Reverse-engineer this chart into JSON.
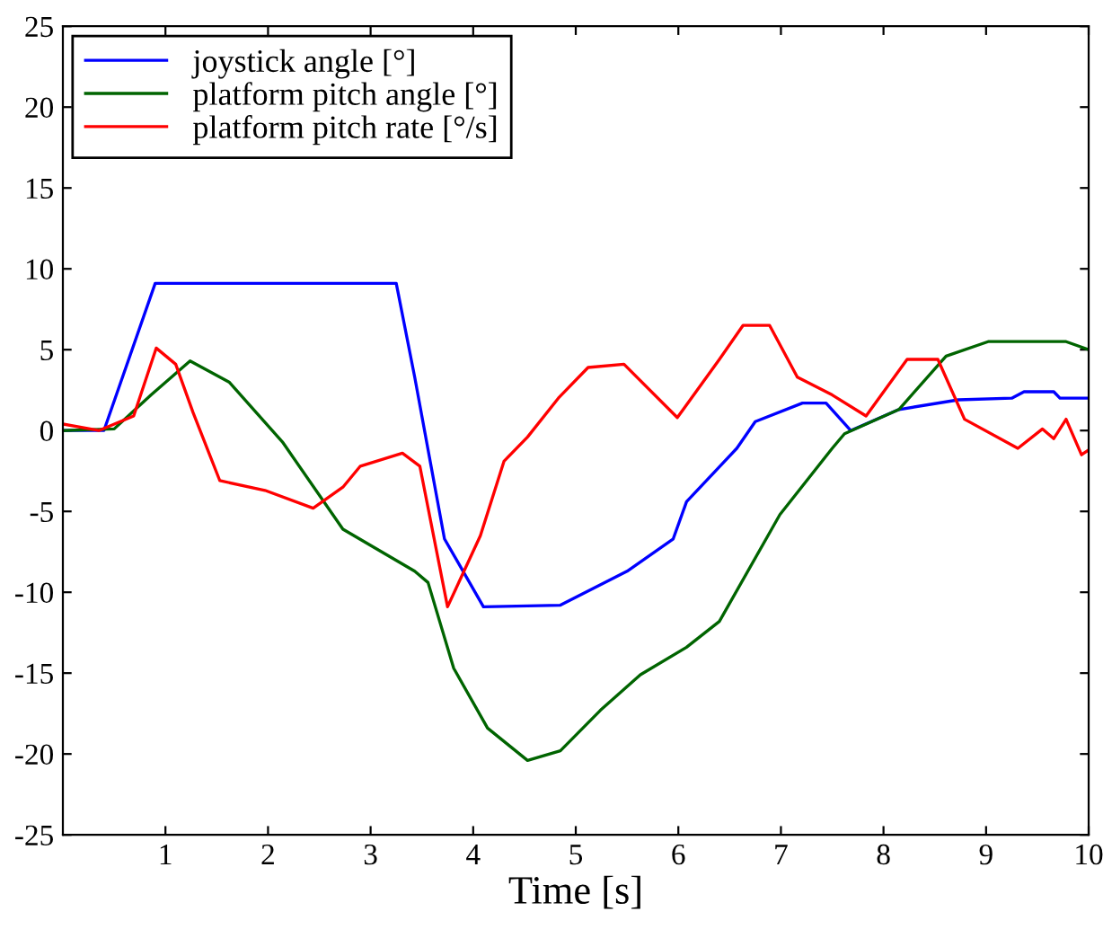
{
  "chart_data": {
    "type": "line",
    "xlabel": "Time [s]",
    "xlim": [
      0,
      10
    ],
    "xticks": [
      1,
      2,
      3,
      4,
      5,
      6,
      7,
      8,
      9,
      10
    ],
    "ylim": [
      -25,
      25
    ],
    "yticks": [
      -25,
      -20,
      -15,
      -10,
      -5,
      0,
      5,
      10,
      15,
      20,
      25
    ],
    "grid": false,
    "legend": "top left",
    "marker": "none",
    "line_style": "solid",
    "series": [
      {
        "name": "joystick angle [°]",
        "color": "#0000ff",
        "x": [
          0,
          0.4,
          0.9,
          3.25,
          3.43,
          3.72,
          4.1,
          4.85,
          5.5,
          5.95,
          6.08,
          6.57,
          6.75,
          7.21,
          7.44,
          7.68,
          8.15,
          8.73,
          9.25,
          9.37,
          9.66,
          9.72,
          10
        ],
        "values": [
          0,
          0,
          9.1,
          9.1,
          3.3,
          -6.7,
          -10.9,
          -10.8,
          -8.7,
          -6.7,
          -4.4,
          -1.1,
          0.55,
          1.7,
          1.7,
          0,
          1.3,
          1.9,
          2.0,
          2.4,
          2.4,
          2.0,
          2.0
        ]
      },
      {
        "name": "platform pitch angle [°]",
        "color": "#006400",
        "x": [
          0,
          0.5,
          0.86,
          1.24,
          1.62,
          2.14,
          2.73,
          3.43,
          3.56,
          3.81,
          4.14,
          4.53,
          4.85,
          5.24,
          5.63,
          6.08,
          6.4,
          6.99,
          7.5,
          7.62,
          8.15,
          8.61,
          9.02,
          9.78,
          10
        ],
        "values": [
          0,
          0.1,
          2.2,
          4.3,
          3.0,
          -0.7,
          -6.1,
          -8.7,
          -9.4,
          -14.7,
          -18.4,
          -20.4,
          -19.8,
          -17.3,
          -15.1,
          -13.4,
          -11.8,
          -5.2,
          -1.1,
          -0.2,
          1.3,
          4.6,
          5.5,
          5.5,
          5.0
        ]
      },
      {
        "name": "platform pitch rate [°/s]",
        "color": "#ff0000",
        "x": [
          0,
          0.35,
          0.69,
          0.91,
          1.1,
          1.27,
          1.53,
          1.97,
          2.44,
          2.73,
          2.9,
          3.31,
          3.48,
          3.75,
          4.07,
          4.3,
          4.53,
          4.83,
          5.12,
          5.47,
          5.99,
          6.4,
          6.63,
          6.89,
          7.16,
          7.5,
          7.83,
          8.23,
          8.53,
          8.79,
          9.31,
          9.55,
          9.66,
          9.78,
          9.93,
          10
        ],
        "values": [
          0.4,
          0,
          0.9,
          5.1,
          4.1,
          1.1,
          -3.1,
          -3.7,
          -4.8,
          -3.5,
          -2.2,
          -1.4,
          -2.2,
          -10.9,
          -6.5,
          -1.9,
          -0.4,
          2.0,
          3.9,
          4.1,
          0.8,
          4.4,
          6.5,
          6.5,
          3.3,
          2.2,
          0.9,
          4.4,
          4.4,
          0.7,
          -1.1,
          0.1,
          -0.5,
          0.7,
          -1.5,
          -1.2
        ]
      }
    ]
  }
}
